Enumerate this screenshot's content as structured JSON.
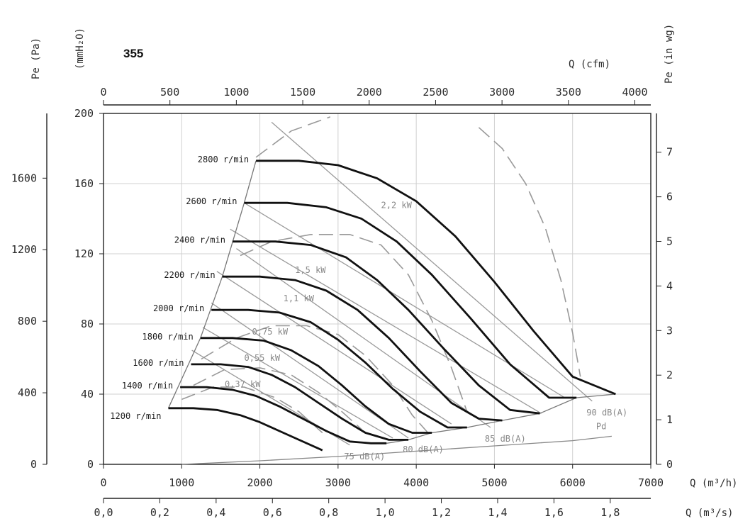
{
  "model": "355",
  "chart_data": {
    "type": "line",
    "title": "355",
    "axes": {
      "x_bottom": {
        "label": "Q (m³/h)",
        "range": [
          0,
          7000
        ],
        "ticks": [
          0,
          1000,
          2000,
          3000,
          4000,
          5000,
          6000,
          7000
        ]
      },
      "x_bottom2": {
        "label": "Q (m³/s)",
        "range": [
          0,
          1.944
        ],
        "ticks": [
          "0,0",
          "0,2",
          "0,4",
          "0,6",
          "0,8",
          "1,0",
          "1,2",
          "1,4",
          "1,6",
          "1,8"
        ],
        "tick_values": [
          0,
          0.2,
          0.4,
          0.6,
          0.8,
          1.0,
          1.2,
          1.4,
          1.6,
          1.8
        ]
      },
      "x_top": {
        "label": "Q (cfm)",
        "range": [
          0,
          4120
        ],
        "ticks": [
          0,
          500,
          1000,
          1500,
          2000,
          2500,
          3000,
          3500,
          4000
        ]
      },
      "y_left_outer": {
        "label": "Pe (Pa)",
        "range": [
          0,
          1962
        ],
        "ticks": [
          0,
          400,
          800,
          1200,
          1600
        ]
      },
      "y_left_inner": {
        "label": "(mmH₂O)",
        "range": [
          0,
          200
        ],
        "ticks": [
          0,
          40,
          80,
          120,
          160,
          200
        ]
      },
      "y_right": {
        "label": "Pe (in wg)",
        "range": [
          0,
          7.87
        ],
        "ticks": [
          0,
          1,
          2,
          3,
          4,
          5,
          6,
          7
        ]
      },
      "grid": true
    },
    "speed_curves": [
      {
        "name": "2800 r/min",
        "unit": "mmH2O",
        "points": [
          [
            1950,
            173
          ],
          [
            2500,
            173
          ],
          [
            3000,
            170.5
          ],
          [
            3500,
            163
          ],
          [
            4000,
            150
          ],
          [
            4500,
            130
          ],
          [
            5000,
            104
          ],
          [
            5500,
            76
          ],
          [
            6000,
            50
          ],
          [
            6550,
            40
          ]
        ]
      },
      {
        "name": "2600 r/min",
        "unit": "mmH2O",
        "points": [
          [
            1800,
            149
          ],
          [
            2350,
            149
          ],
          [
            2850,
            146.5
          ],
          [
            3300,
            140
          ],
          [
            3750,
            127
          ],
          [
            4200,
            108
          ],
          [
            4700,
            83
          ],
          [
            5200,
            57
          ],
          [
            5700,
            38
          ],
          [
            6050,
            38
          ]
        ]
      },
      {
        "name": "2400 r/min",
        "unit": "mmH2O",
        "points": [
          [
            1650,
            127
          ],
          [
            2200,
            127
          ],
          [
            2650,
            125
          ],
          [
            3100,
            118
          ],
          [
            3500,
            105
          ],
          [
            3900,
            88
          ],
          [
            4350,
            66
          ],
          [
            4800,
            45
          ],
          [
            5200,
            31
          ],
          [
            5580,
            29
          ]
        ]
      },
      {
        "name": "2200 r/min",
        "unit": "mmH2O",
        "points": [
          [
            1520,
            107
          ],
          [
            2000,
            107
          ],
          [
            2450,
            105
          ],
          [
            2850,
            99
          ],
          [
            3250,
            88
          ],
          [
            3650,
            72
          ],
          [
            4050,
            53
          ],
          [
            4450,
            35
          ],
          [
            4800,
            26
          ],
          [
            5100,
            25
          ]
        ]
      },
      {
        "name": "2000 r/min",
        "unit": "mmH2O",
        "points": [
          [
            1380,
            88
          ],
          [
            1850,
            88
          ],
          [
            2250,
            86.5
          ],
          [
            2650,
            81
          ],
          [
            3000,
            71
          ],
          [
            3350,
            58
          ],
          [
            3700,
            43
          ],
          [
            4050,
            30
          ],
          [
            4400,
            21
          ],
          [
            4650,
            21
          ]
        ]
      },
      {
        "name": "1800 r/min",
        "unit": "mmH2O",
        "points": [
          [
            1240,
            72
          ],
          [
            1650,
            72
          ],
          [
            2050,
            70.5
          ],
          [
            2400,
            65
          ],
          [
            2750,
            56
          ],
          [
            3050,
            45
          ],
          [
            3350,
            33
          ],
          [
            3650,
            23
          ],
          [
            3950,
            18
          ],
          [
            4200,
            18
          ]
        ]
      },
      {
        "name": "1600 r/min",
        "unit": "mmH2O",
        "points": [
          [
            1120,
            57
          ],
          [
            1500,
            57
          ],
          [
            1850,
            55.5
          ],
          [
            2150,
            51
          ],
          [
            2450,
            44
          ],
          [
            2750,
            35
          ],
          [
            3050,
            26
          ],
          [
            3350,
            18
          ],
          [
            3650,
            14
          ],
          [
            3900,
            14
          ]
        ]
      },
      {
        "name": "1400 r/min",
        "unit": "mmH2O",
        "points": [
          [
            980,
            44
          ],
          [
            1320,
            44
          ],
          [
            1650,
            42.5
          ],
          [
            1950,
            39
          ],
          [
            2250,
            33
          ],
          [
            2550,
            26
          ],
          [
            2850,
            19
          ],
          [
            3150,
            13
          ],
          [
            3420,
            12
          ],
          [
            3620,
            12
          ]
        ]
      },
      {
        "name": "1200 r/min",
        "unit": "mmH2O",
        "points": [
          [
            830,
            32
          ],
          [
            1150,
            32
          ],
          [
            1450,
            31
          ],
          [
            1750,
            28
          ],
          [
            2000,
            24
          ],
          [
            2250,
            19
          ],
          [
            2500,
            14
          ],
          [
            2800,
            8
          ]
        ]
      }
    ],
    "power_curves": [
      {
        "name": "2,2 kW",
        "unit": "mmH2O",
        "points": [
          [
            4800,
            192
          ],
          [
            5100,
            180
          ],
          [
            5400,
            160
          ],
          [
            5650,
            135
          ],
          [
            5850,
            105
          ],
          [
            6000,
            75
          ],
          [
            6100,
            50
          ]
        ]
      },
      {
        "name": "1,5 kW",
        "unit": "mmH2O",
        "points": [
          [
            1750,
            119
          ],
          [
            2150,
            127
          ],
          [
            2650,
            131
          ],
          [
            3150,
            131
          ],
          [
            3550,
            125
          ],
          [
            3900,
            108
          ],
          [
            4200,
            82
          ],
          [
            4450,
            55
          ],
          [
            4650,
            30
          ]
        ]
      },
      {
        "name": "1,1 kW",
        "unit": "mmH2O",
        "points": [
          [
            1950,
            175
          ],
          [
            2400,
            190
          ],
          [
            2900,
            198
          ]
        ]
      },
      {
        "name": "0,75 kW",
        "unit": "mmH2O",
        "points": [
          [
            1250,
            60
          ],
          [
            1700,
            72
          ],
          [
            2150,
            79
          ],
          [
            2600,
            79
          ],
          [
            3000,
            74
          ],
          [
            3350,
            62
          ],
          [
            3700,
            45
          ],
          [
            3950,
            28
          ],
          [
            4150,
            18
          ]
        ]
      },
      {
        "name": "0,55 kW",
        "unit": "mmH2O",
        "points": [
          [
            1150,
            45
          ],
          [
            1550,
            54
          ],
          [
            2000,
            55
          ],
          [
            2400,
            51
          ],
          [
            2750,
            41
          ],
          [
            3050,
            30
          ],
          [
            3300,
            20
          ]
        ]
      },
      {
        "name": "0,37 kW",
        "unit": "mmH2O",
        "points": [
          [
            1000,
            37
          ],
          [
            1400,
            44
          ],
          [
            1800,
            44
          ],
          [
            2200,
            38
          ],
          [
            2500,
            30
          ],
          [
            2800,
            18
          ]
        ]
      }
    ],
    "noise_lines": [
      {
        "name": "75 dB(A)",
        "points": [
          [
            1130,
            65
          ],
          [
            3150,
            11
          ]
        ]
      },
      {
        "name": "80 dB(A)",
        "points": [
          [
            1380,
            92
          ],
          [
            3900,
            15
          ]
        ]
      },
      {
        "name": "85 dB(A)",
        "points": [
          [
            1700,
            123
          ],
          [
            4950,
            21
          ]
        ]
      },
      {
        "name": "90 dB(A)",
        "points": [
          [
            2150,
            195
          ],
          [
            6250,
            36
          ]
        ]
      }
    ],
    "extra_lines": [
      {
        "points": [
          [
            1620,
            134
          ],
          [
            5600,
            29
          ]
        ]
      },
      {
        "points": [
          [
            1450,
            110
          ],
          [
            4450,
            23
          ]
        ]
      },
      {
        "points": [
          [
            1270,
            78
          ],
          [
            3700,
            15
          ]
        ]
      },
      {
        "points": [
          [
            1800,
            149
          ],
          [
            5900,
            38
          ]
        ]
      }
    ],
    "surge_line": {
      "points": [
        [
          830,
          32
        ],
        [
          1240,
          72
        ],
        [
          1520,
          107
        ],
        [
          1800,
          149
        ],
        [
          1950,
          173
        ]
      ]
    },
    "limit_curve": {
      "points": [
        [
          3620,
          12
        ],
        [
          3900,
          14
        ],
        [
          4200,
          18
        ],
        [
          4650,
          21
        ],
        [
          5100,
          25
        ],
        [
          5580,
          29
        ],
        [
          6050,
          38
        ],
        [
          6550,
          40
        ]
      ]
    },
    "pd_curve": {
      "name": "Pd",
      "points": [
        [
          1000,
          0
        ],
        [
          2000,
          2
        ],
        [
          3000,
          4.5
        ],
        [
          4000,
          7.5
        ],
        [
          5000,
          10.5
        ],
        [
          6000,
          13.5
        ],
        [
          6500,
          16
        ]
      ]
    }
  }
}
